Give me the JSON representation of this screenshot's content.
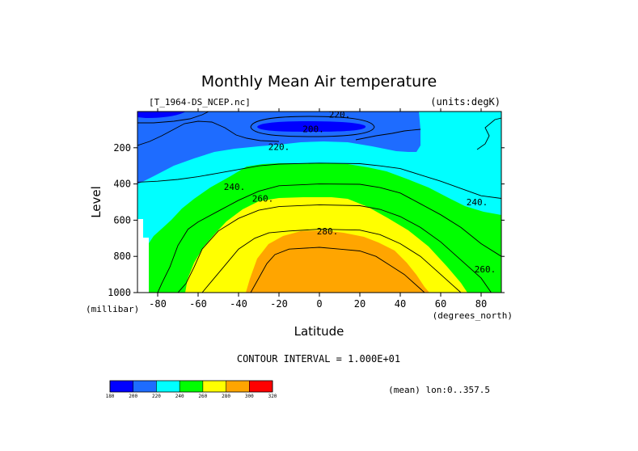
{
  "chart_data": {
    "type": "contour",
    "title": "Monthly Mean Air temperature",
    "source_label": "[T_1964-DS_NCEP.nc]",
    "units_label": "(units:degK)",
    "xlabel": "Latitude",
    "x_units": "(degrees_north)",
    "ylabel": "Level",
    "y_units": "(millibar)",
    "xlim": [
      -90,
      90
    ],
    "ylim": [
      0,
      1000
    ],
    "y_inverted": true,
    "x_ticks": [
      -80,
      -60,
      -40,
      -20,
      0,
      20,
      40,
      60,
      80
    ],
    "y_ticks": [
      200,
      400,
      600,
      800,
      1000
    ],
    "contour_interval_text": "CONTOUR INTERVAL = 1.000E+01",
    "mean_text": "(mean) lon:0..357.5",
    "levels": [
      180,
      200,
      220,
      240,
      260,
      280,
      300,
      320
    ],
    "level_colors": [
      "#0000ff",
      "#1e6cff",
      "#00ffff",
      "#00ff00",
      "#ffff00",
      "#ffa500",
      "#ff0000"
    ],
    "contour_labels": [
      {
        "text": "220.",
        "lat": 10,
        "p": 15
      },
      {
        "text": "200.",
        "lat": -3,
        "p": 95
      },
      {
        "text": "220.",
        "lat": -20,
        "p": 195
      },
      {
        "text": "240.",
        "lat": -42,
        "p": 415
      },
      {
        "text": "260.",
        "lat": -28,
        "p": 480
      },
      {
        "text": "280.",
        "lat": 4,
        "p": 660
      },
      {
        "text": "240.",
        "lat": 78,
        "p": 500
      },
      {
        "text": "260.",
        "lat": 82,
        "p": 870
      }
    ],
    "contours": [
      {
        "value": 240,
        "points": [
          [
            -90,
            390
          ],
          [
            -80,
            385
          ],
          [
            -70,
            375
          ],
          [
            -60,
            360
          ],
          [
            -50,
            340
          ],
          [
            -40,
            320
          ],
          [
            -30,
            300
          ],
          [
            -20,
            290
          ],
          [
            0,
            285
          ],
          [
            20,
            288
          ],
          [
            30,
            300
          ],
          [
            40,
            315
          ],
          [
            50,
            350
          ],
          [
            60,
            385
          ],
          [
            70,
            425
          ],
          [
            80,
            465
          ],
          [
            90,
            480
          ]
        ]
      },
      {
        "value": 250,
        "points": [
          [
            -80,
            1000
          ],
          [
            -78,
            950
          ],
          [
            -74,
            860
          ],
          [
            -70,
            740
          ],
          [
            -65,
            650
          ],
          [
            -60,
            610
          ],
          [
            -50,
            550
          ],
          [
            -40,
            490
          ],
          [
            -30,
            440
          ],
          [
            -20,
            410
          ],
          [
            0,
            400
          ],
          [
            20,
            402
          ],
          [
            30,
            420
          ],
          [
            40,
            450
          ],
          [
            50,
            510
          ],
          [
            60,
            570
          ],
          [
            70,
            640
          ],
          [
            80,
            730
          ],
          [
            90,
            800
          ]
        ]
      },
      {
        "value": 260,
        "points": [
          [
            -70,
            1000
          ],
          [
            -66,
            950
          ],
          [
            -62,
            860
          ],
          [
            -58,
            760
          ],
          [
            -50,
            660
          ],
          [
            -40,
            590
          ],
          [
            -30,
            545
          ],
          [
            -20,
            525
          ],
          [
            0,
            515
          ],
          [
            20,
            520
          ],
          [
            30,
            540
          ],
          [
            40,
            580
          ],
          [
            50,
            640
          ],
          [
            60,
            720
          ],
          [
            70,
            820
          ],
          [
            80,
            920
          ],
          [
            85,
            1000
          ]
        ]
      },
      {
        "value": 270,
        "points": [
          [
            -58,
            1000
          ],
          [
            -52,
            920
          ],
          [
            -46,
            840
          ],
          [
            -40,
            760
          ],
          [
            -32,
            700
          ],
          [
            -25,
            670
          ],
          [
            -15,
            660
          ],
          [
            0,
            650
          ],
          [
            20,
            655
          ],
          [
            30,
            680
          ],
          [
            40,
            730
          ],
          [
            50,
            800
          ],
          [
            58,
            880
          ],
          [
            65,
            950
          ],
          [
            70,
            1000
          ]
        ]
      },
      {
        "value": 280,
        "points": [
          [
            -34,
            1000
          ],
          [
            -30,
            920
          ],
          [
            -26,
            840
          ],
          [
            -22,
            790
          ],
          [
            -15,
            760
          ],
          [
            0,
            750
          ],
          [
            10,
            760
          ],
          [
            20,
            770
          ],
          [
            28,
            800
          ],
          [
            35,
            850
          ],
          [
            42,
            900
          ],
          [
            48,
            960
          ],
          [
            52,
            1000
          ]
        ]
      }
    ]
  }
}
